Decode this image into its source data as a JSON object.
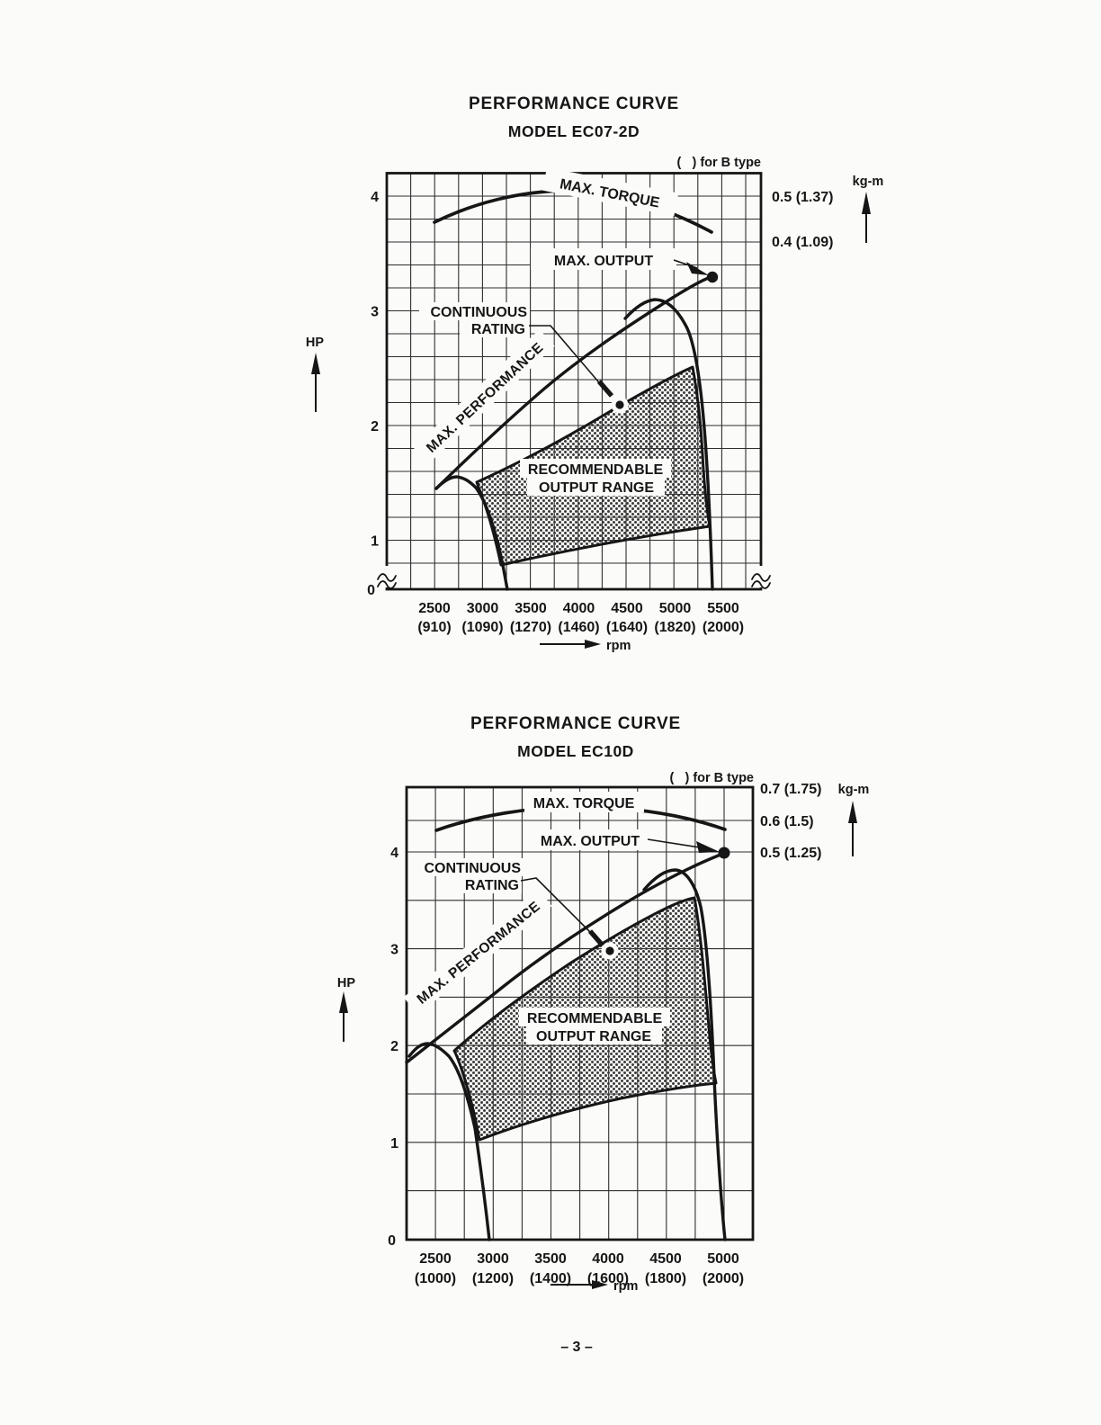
{
  "page": {
    "footer": "– 3 –"
  },
  "charts": [
    {
      "title": "PERFORMANCE CURVE",
      "model": "MODEL EC07-2D",
      "note": "(   ) for B type",
      "hp_axis": {
        "label": "HP",
        "ticks": [
          "4",
          "3",
          "2",
          "1",
          "0"
        ]
      },
      "torque_axis": {
        "unit": "kg-m",
        "ticks": [
          "0.5 (1.37)",
          "0.4 (1.09)"
        ]
      },
      "rpm_axis": {
        "label": "rpm",
        "ticks": [
          {
            "rpm": "2500",
            "b": "(910)"
          },
          {
            "rpm": "3000",
            "b": "(1090)"
          },
          {
            "rpm": "3500",
            "b": "(1270)"
          },
          {
            "rpm": "4000",
            "b": "(1460)"
          },
          {
            "rpm": "4500",
            "b": "(1640)"
          },
          {
            "rpm": "5000",
            "b": "(1820)"
          },
          {
            "rpm": "5500",
            "b": "(2000)"
          }
        ]
      },
      "labels": {
        "max_torque": "MAX. TORQUE",
        "max_output": "MAX. OUTPUT",
        "continuous_line1": "CONTINUOUS",
        "continuous_line2": "RATING",
        "max_performance": "MAX. PERFORMANCE",
        "range_line1": "RECOMMENDABLE",
        "range_line2": "OUTPUT RANGE"
      }
    },
    {
      "title": "PERFORMANCE CURVE",
      "model": "MODEL EC10D",
      "note": "(   ) for B type",
      "hp_axis": {
        "label": "HP",
        "ticks": [
          "4",
          "3",
          "2",
          "1",
          "0"
        ]
      },
      "torque_axis": {
        "unit": "kg-m",
        "ticks": [
          "0.7 (1.75)",
          "0.6 (1.5)",
          "0.5 (1.25)"
        ]
      },
      "rpm_axis": {
        "label": "rpm",
        "ticks": [
          {
            "rpm": "2500",
            "b": "(1000)"
          },
          {
            "rpm": "3000",
            "b": "(1200)"
          },
          {
            "rpm": "3500",
            "b": "(1400)"
          },
          {
            "rpm": "4000",
            "b": "(1600)"
          },
          {
            "rpm": "4500",
            "b": "(1800)"
          },
          {
            "rpm": "5000",
            "b": "(2000)"
          }
        ]
      },
      "labels": {
        "max_torque": "MAX. TORQUE",
        "max_output": "MAX. OUTPUT",
        "continuous_line1": "CONTINUOUS",
        "continuous_line2": "RATING",
        "max_performance": "MAX. PERFORMANCE",
        "range_line1": "RECOMMENDABLE",
        "range_line2": "OUTPUT RANGE"
      }
    }
  ],
  "chart_data": [
    {
      "type": "line",
      "model": "EC07-2D",
      "title": "PERFORMANCE CURVE",
      "x_axis": {
        "label": "rpm",
        "ticks": [
          2500,
          3000,
          3500,
          4000,
          4500,
          5000,
          5500
        ],
        "b_type_ticks": [
          910,
          1090,
          1270,
          1460,
          1640,
          1820,
          2000
        ],
        "range": [
          2000,
          5900
        ]
      },
      "y_axis_left": {
        "label": "HP",
        "ticks": [
          0,
          1,
          2,
          3,
          4
        ],
        "range": [
          0,
          4.2
        ],
        "axis_break_below_hp": 0.8
      },
      "y_axis_right": {
        "label": "kg-m",
        "ticks": [
          "0.5 (1.37)",
          "0.4 (1.09)"
        ]
      },
      "grid": "on",
      "series": [
        {
          "name": "MAX. TORQUE",
          "unit": "kg-m",
          "x": [
            2500,
            3000,
            3500,
            4000,
            4500,
            5000,
            5400
          ],
          "y": [
            0.44,
            0.48,
            0.505,
            0.51,
            0.5,
            0.47,
            0.42
          ]
        },
        {
          "name": "MAX. PERFORMANCE",
          "unit": "HP",
          "x": [
            2500,
            3000,
            3500,
            4000,
            4500,
            5000,
            5400
          ],
          "y": [
            1.45,
            1.8,
            2.2,
            2.55,
            2.85,
            3.1,
            3.3
          ]
        }
      ],
      "points": [
        {
          "name": "MAX. OUTPUT",
          "rpm": 5400,
          "hp": 3.3
        },
        {
          "name": "CONTINUOUS RATING",
          "rpm": 4500,
          "hp": 2.2
        }
      ],
      "recommendable_output_range": {
        "rpm": [
          3000,
          5300
        ],
        "hp_upper": [
          1.5,
          2.5
        ],
        "hp_lower": [
          0.8,
          1.1
        ]
      }
    },
    {
      "type": "line",
      "model": "EC10D",
      "title": "PERFORMANCE CURVE",
      "x_axis": {
        "label": "rpm",
        "ticks": [
          2500,
          3000,
          3500,
          4000,
          4500,
          5000
        ],
        "b_type_ticks": [
          1000,
          1200,
          1400,
          1600,
          1800,
          2000
        ],
        "range": [
          2250,
          5250
        ]
      },
      "y_axis_left": {
        "label": "HP",
        "ticks": [
          0,
          1,
          2,
          3,
          4
        ],
        "range": [
          0,
          4.7
        ]
      },
      "y_axis_right": {
        "label": "kg-m",
        "ticks": [
          "0.7 (1.75)",
          "0.6 (1.5)",
          "0.5 (1.25)"
        ]
      },
      "grid": "on",
      "series": [
        {
          "name": "MAX. TORQUE",
          "unit": "kg-m",
          "x": [
            2500,
            3000,
            3500,
            4000,
            4500,
            5000
          ],
          "y": [
            0.565,
            0.61,
            0.635,
            0.64,
            0.625,
            0.575
          ]
        },
        {
          "name": "MAX. PERFORMANCE",
          "unit": "HP",
          "x": [
            2500,
            3000,
            3500,
            4000,
            4500,
            5000
          ],
          "y": [
            2.05,
            2.55,
            3.0,
            3.4,
            3.7,
            4.0
          ]
        }
      ],
      "points": [
        {
          "name": "MAX. OUTPUT",
          "rpm": 5000,
          "hp": 4.0
        },
        {
          "name": "CONTINUOUS RATING",
          "rpm": 4000,
          "hp": 3.0
        }
      ],
      "recommendable_output_range": {
        "rpm": [
          2900,
          5050
        ],
        "hp_upper": [
          2.0,
          3.55
        ],
        "hp_lower": [
          1.05,
          1.65
        ]
      }
    }
  ]
}
